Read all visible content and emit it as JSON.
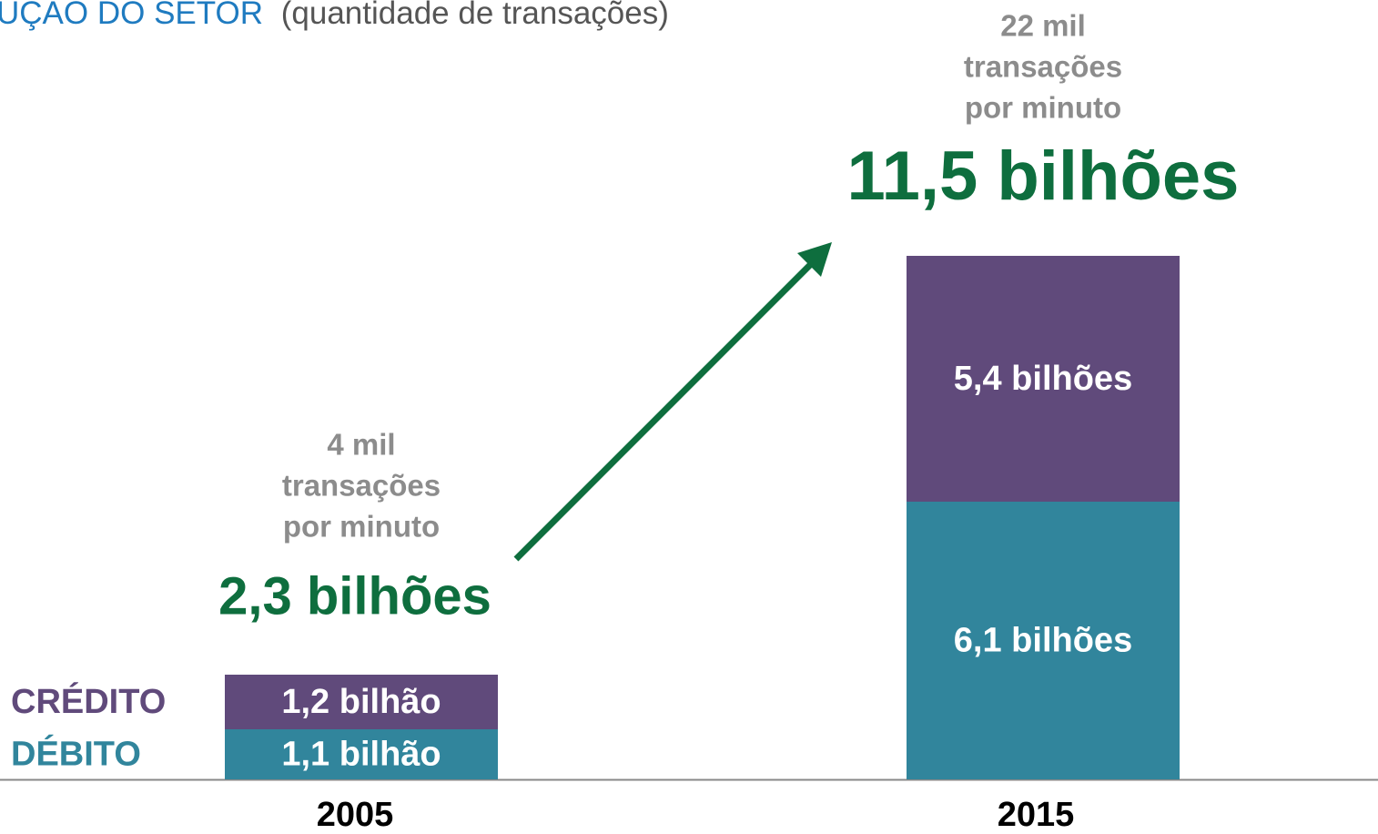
{
  "chart_data": {
    "type": "stacked-bar",
    "title": "UÇÃO DO SETOR",
    "subtitle": "(quantidade de transações)",
    "categories": [
      "2005",
      "2015"
    ],
    "series": [
      {
        "name": "DÉBITO",
        "color": "#31859c",
        "values": [
          1.1,
          6.1
        ],
        "value_labels": [
          "1,1 bilhão",
          "6,1 bilhões"
        ]
      },
      {
        "name": "CRÉDITO",
        "color": "#604a7b",
        "values": [
          1.2,
          5.4
        ],
        "value_labels": [
          "1,2 bilhão",
          "5,4 bilhões"
        ]
      }
    ],
    "totals": [
      2.3,
      11.5
    ],
    "total_labels": [
      "2,3 bilhões",
      "11,5 bilhões"
    ],
    "total_color": "#0e6e3e",
    "annotations": [
      [
        "4 mil",
        "transações",
        "por minuto"
      ],
      [
        "22 mil",
        "transações",
        "por minuto"
      ]
    ]
  }
}
